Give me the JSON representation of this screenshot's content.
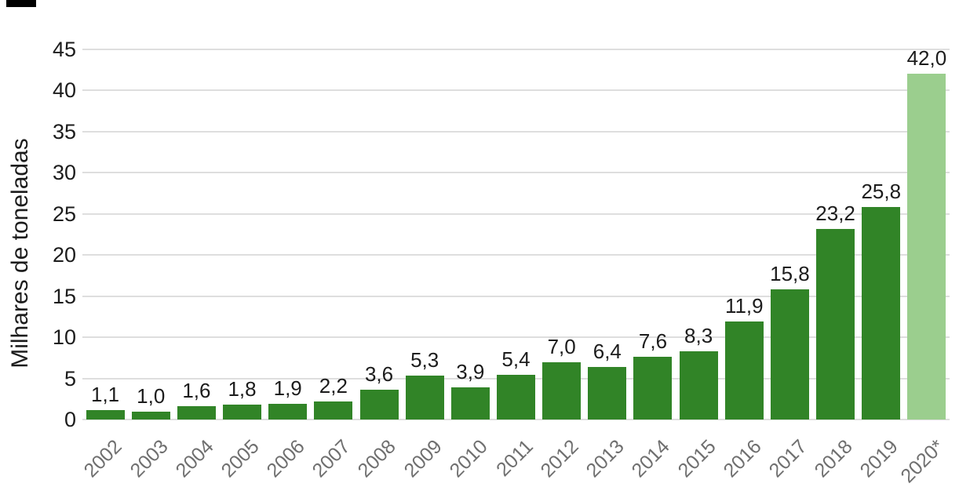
{
  "chart_data": {
    "type": "bar",
    "title": "",
    "xlabel": "",
    "ylabel": "Milhares de toneladas",
    "categories": [
      "2002",
      "2003",
      "2004",
      "2005",
      "2006",
      "2007",
      "2008",
      "2009",
      "2010",
      "2011",
      "2012",
      "2013",
      "2014",
      "2015",
      "2016",
      "2017",
      "2018",
      "2019",
      "2020*"
    ],
    "values": [
      1.1,
      1.0,
      1.6,
      1.8,
      1.9,
      2.2,
      3.6,
      5.3,
      3.9,
      5.4,
      7.0,
      6.4,
      7.6,
      8.3,
      11.9,
      15.8,
      23.2,
      25.8,
      42.0
    ],
    "value_labels": [
      "1,1",
      "1,0",
      "1,6",
      "1,8",
      "1,9",
      "2,2",
      "3,6",
      "5,3",
      "3,9",
      "5,4",
      "7,0",
      "6,4",
      "7,6",
      "8,3",
      "11,9",
      "15,8",
      "23,2",
      "25,8",
      "42,0"
    ],
    "yticks": [
      0,
      5,
      10,
      15,
      20,
      25,
      30,
      35,
      40,
      45
    ],
    "ylim": [
      0,
      45
    ],
    "grid": true,
    "legend_position": "none",
    "highlight_index": 18,
    "colors": {
      "bar": "#318427",
      "highlight_bar": "#9bce8e",
      "gridline": "#dedede",
      "x_tick_label": "#6f6f6f",
      "text": "#1c1c1c"
    }
  }
}
